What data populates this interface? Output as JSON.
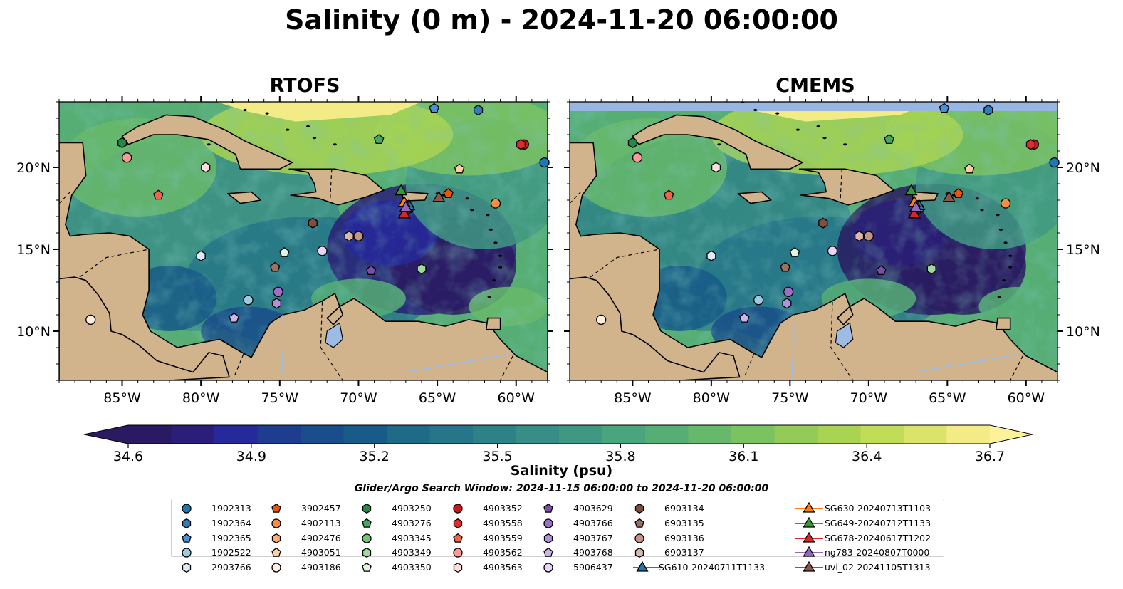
{
  "title": "Salinity (0 m) - 2024-11-20 06:00:00",
  "panels": [
    {
      "title": "RTOFS",
      "style": "rtofs"
    },
    {
      "title": "CMEMS",
      "style": "cmems"
    }
  ],
  "axes": {
    "lon_ticks": [
      "85°W",
      "80°W",
      "75°W",
      "70°W",
      "65°W",
      "60°W"
    ],
    "lat_ticks": [
      "20°N",
      "15°N",
      "10°N"
    ],
    "lon_range": [
      -89,
      -58
    ],
    "lat_range": [
      7,
      24
    ]
  },
  "colorbar": {
    "label": "Salinity (psu)",
    "ticks": [
      "34.6",
      "34.9",
      "35.2",
      "35.5",
      "35.8",
      "36.1",
      "36.4",
      "36.7"
    ],
    "min": 34.6,
    "max": 36.7,
    "colors": [
      "#2a1a61",
      "#2a1e78",
      "#26299a",
      "#1f3d8f",
      "#1a4d8a",
      "#185b87",
      "#1f6a87",
      "#267588",
      "#2e8187",
      "#388d86",
      "#409882",
      "#4aa47d",
      "#56ae74",
      "#67b86a",
      "#7bc261",
      "#92cb58",
      "#a9d352",
      "#c1dc56",
      "#dbe46a",
      "#f3eb86"
    ]
  },
  "search_window": "Glider/Argo Search Window: 2024-11-15 06:00:00 to 2024-11-20 06:00:00",
  "legend": [
    {
      "label": "1902313",
      "marker": "circle",
      "color": "#1f77b4"
    },
    {
      "label": "1902364",
      "marker": "hexagon",
      "color": "#2c7fb8"
    },
    {
      "label": "1902365",
      "marker": "pentagon",
      "color": "#4a90d9"
    },
    {
      "label": "1902522",
      "marker": "circle",
      "color": "#9ecae1"
    },
    {
      "label": "2903766",
      "marker": "hexagon",
      "color": "#deebf7"
    },
    {
      "label": "3902457",
      "marker": "pentagon",
      "color": "#e6550d"
    },
    {
      "label": "4902113",
      "marker": "circle",
      "color": "#fd8d3c"
    },
    {
      "label": "4902476",
      "marker": "hexagon",
      "color": "#fdae6b"
    },
    {
      "label": "4903051",
      "marker": "pentagon",
      "color": "#fdd0a2"
    },
    {
      "label": "4903186",
      "marker": "circle",
      "color": "#feedde"
    },
    {
      "label": "4903250",
      "marker": "hexagon",
      "color": "#238b45"
    },
    {
      "label": "4903276",
      "marker": "pentagon",
      "color": "#41ab5d"
    },
    {
      "label": "4903345",
      "marker": "circle",
      "color": "#74c476"
    },
    {
      "label": "4903349",
      "marker": "hexagon",
      "color": "#a1d99b"
    },
    {
      "label": "4903350",
      "marker": "pentagon",
      "color": "#e5f5e0"
    },
    {
      "label": "4903352",
      "marker": "circle",
      "color": "#cb181d"
    },
    {
      "label": "4903558",
      "marker": "hexagon",
      "color": "#de2d26"
    },
    {
      "label": "4903559",
      "marker": "pentagon",
      "color": "#ef6548"
    },
    {
      "label": "4903562",
      "marker": "circle",
      "color": "#fb9a99"
    },
    {
      "label": "4903563",
      "marker": "hexagon",
      "color": "#fde0dd"
    },
    {
      "label": "4903629",
      "marker": "pentagon",
      "color": "#7b4fa6"
    },
    {
      "label": "4903766",
      "marker": "circle",
      "color": "#9e6fc9"
    },
    {
      "label": "4903767",
      "marker": "hexagon",
      "color": "#b591dd"
    },
    {
      "label": "4903768",
      "marker": "pentagon",
      "color": "#cdb3ea"
    },
    {
      "label": "5906437",
      "marker": "circle",
      "color": "#e6d5f5"
    },
    {
      "label": "6903134",
      "marker": "hexagon",
      "color": "#7f4f3f"
    },
    {
      "label": "6903135",
      "marker": "pentagon",
      "color": "#a0705f"
    },
    {
      "label": "6903136",
      "marker": "circle",
      "color": "#c49484"
    },
    {
      "label": "6903137",
      "marker": "hexagon",
      "color": "#ddb8a8"
    },
    {
      "label": "SG610-20240711T1133",
      "marker": "triangle",
      "color": "#1f77b4"
    },
    {
      "label": "SG630-20240713T1103",
      "marker": "triangle",
      "color": "#ff7f0e"
    },
    {
      "label": "SG649-20240712T1133",
      "marker": "triangle",
      "color": "#2ca02c"
    },
    {
      "label": "SG678-20240617T1202",
      "marker": "triangle",
      "color": "#d62728"
    },
    {
      "label": "ng783-20240807T0000",
      "marker": "triangle",
      "color": "#9467bd"
    },
    {
      "label": "uvi_02-20241105T1313",
      "marker": "triangle",
      "color": "#8c564b"
    }
  ],
  "floats": [
    {
      "id": "1902313",
      "lon": -58.2,
      "lat": 20.3
    },
    {
      "id": "1902364",
      "lon": -62.4,
      "lat": 23.5
    },
    {
      "id": "1902365",
      "lon": -65.2,
      "lat": 23.6
    },
    {
      "id": "1902522",
      "lon": -77.0,
      "lat": 11.9
    },
    {
      "id": "2903766",
      "lon": -80.0,
      "lat": 14.6
    },
    {
      "id": "3902457",
      "lon": -64.3,
      "lat": 18.4
    },
    {
      "id": "4902113",
      "lon": -61.3,
      "lat": 17.8
    },
    {
      "id": "4902476",
      "lon": -66.9,
      "lat": 17.5
    },
    {
      "id": "4903051",
      "lon": -63.6,
      "lat": 19.9
    },
    {
      "id": "4903186",
      "lon": -87.0,
      "lat": 10.7
    },
    {
      "id": "4903250",
      "lon": -85.0,
      "lat": 21.5
    },
    {
      "id": "4903276",
      "lon": -68.7,
      "lat": 21.7
    },
    {
      "id": "4903345",
      "lon": -66.8,
      "lat": 17.5
    },
    {
      "id": "4903349",
      "lon": -66.0,
      "lat": 13.8
    },
    {
      "id": "4903350",
      "lon": -74.7,
      "lat": 14.8
    },
    {
      "id": "4903352",
      "lon": -59.5,
      "lat": 21.4
    },
    {
      "id": "4903558",
      "lon": -59.7,
      "lat": 21.4
    },
    {
      "id": "4903559",
      "lon": -82.7,
      "lat": 18.3
    },
    {
      "id": "4903562",
      "lon": -84.7,
      "lat": 20.6
    },
    {
      "id": "4903563",
      "lon": -79.7,
      "lat": 20.0
    },
    {
      "id": "4903629",
      "lon": -69.2,
      "lat": 13.7
    },
    {
      "id": "4903766",
      "lon": -75.1,
      "lat": 12.4
    },
    {
      "id": "4903767",
      "lon": -75.2,
      "lat": 11.7
    },
    {
      "id": "4903768",
      "lon": -77.9,
      "lat": 10.8
    },
    {
      "id": "5906437",
      "lon": -72.3,
      "lat": 14.9
    },
    {
      "id": "6903134",
      "lon": -72.9,
      "lat": 16.6
    },
    {
      "id": "6903135",
      "lon": -75.3,
      "lat": 13.9
    },
    {
      "id": "6903136",
      "lon": -70.0,
      "lat": 15.8
    },
    {
      "id": "6903137",
      "lon": -70.6,
      "lat": 15.8
    }
  ],
  "gliders": [
    {
      "id": "SG610-20240711T1133",
      "lon": -66.8,
      "lat": 17.7
    },
    {
      "id": "SG630-20240713T1103",
      "lon": -67.1,
      "lat": 17.9
    },
    {
      "id": "SG649-20240712T1133",
      "lon": -67.3,
      "lat": 18.6
    },
    {
      "id": "SG678-20240617T1202",
      "lon": -67.1,
      "lat": 17.2
    },
    {
      "id": "ng783-20240807T0000",
      "lon": -67.0,
      "lat": 17.6
    },
    {
      "id": "uvi_02-20241105T1313",
      "lon": -64.9,
      "lat": 18.2
    }
  ]
}
